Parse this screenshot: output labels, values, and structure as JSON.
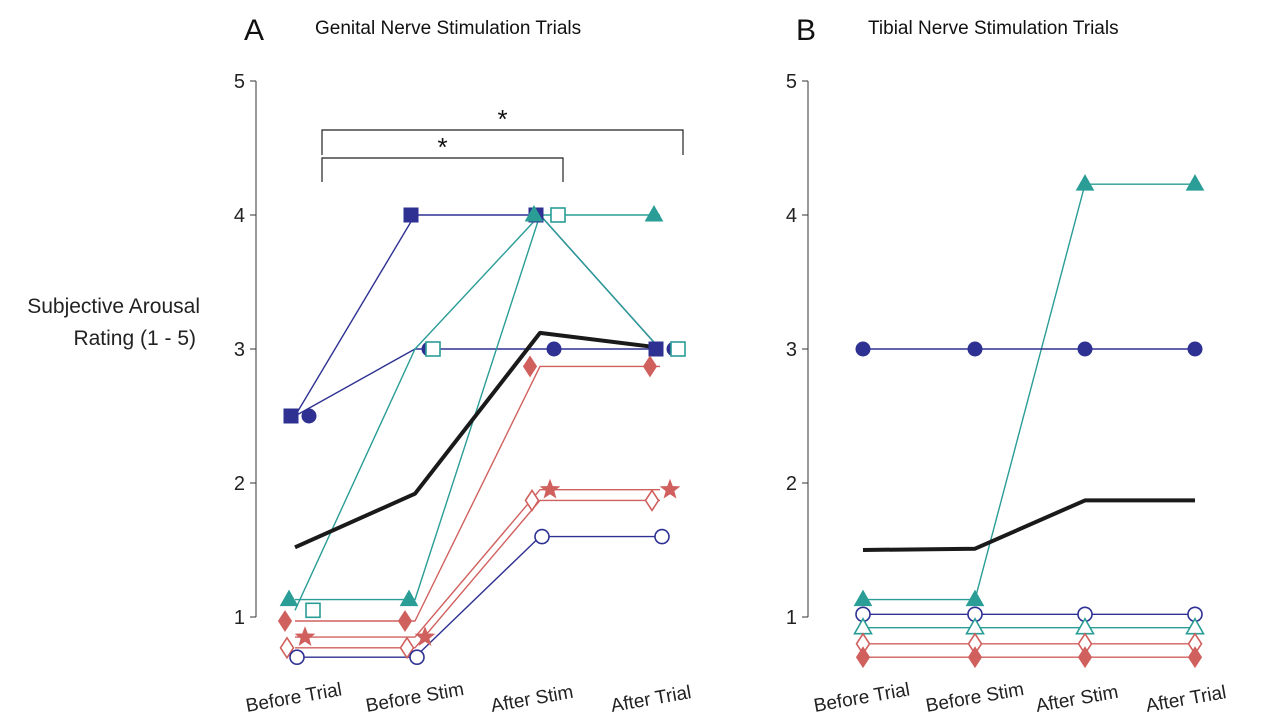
{
  "chart_data": [
    {
      "type": "line",
      "panel_letter": "A",
      "title": "Genital Nerve Stimulation Trials",
      "ylabel": [
        "Subjective Arousal",
        "Rating (1 - 5)"
      ],
      "categories": [
        "Before Trial",
        "Before Stim",
        "After Stim",
        "After Trial"
      ],
      "yticks": [
        "1",
        "2",
        "3",
        "4",
        "5"
      ],
      "ylim": [
        0.7,
        5
      ],
      "significance": [
        {
          "from": "Before Trial",
          "to": "After Stim",
          "label": "*"
        },
        {
          "from": "Before Trial",
          "to": "After Trial",
          "label": "*"
        }
      ],
      "series": [
        {
          "marker": "square-filled",
          "color": "#2e3192",
          "points": [
            [
              "Before Trial",
              2.5
            ],
            [
              "Before Stim",
              4.0
            ],
            [
              "After Stim",
              4.0
            ],
            [
              "After Trial",
              3.0
            ]
          ]
        },
        {
          "marker": "circle-filled",
          "color": "#2e3192",
          "points": [
            [
              "Before Trial",
              2.5
            ],
            [
              "Before Stim",
              3.0
            ],
            [
              "After Stim",
              3.0
            ],
            [
              "After Trial",
              3.0
            ]
          ]
        },
        {
          "marker": "triangle-filled",
          "color": "#2a9d96",
          "points": [
            [
              "Before Trial",
              1.13
            ],
            [
              "Before Stim",
              1.13
            ],
            [
              "After Stim",
              4.0
            ],
            [
              "After Trial",
              4.0
            ]
          ]
        },
        {
          "marker": "square-open",
          "color": "#2a9d96",
          "points": [
            [
              "Before Trial",
              1.05
            ],
            [
              "Before Stim",
              3.0
            ],
            [
              "After Stim",
              4.0
            ],
            [
              "After Trial",
              3.0
            ]
          ]
        },
        {
          "marker": "diamond-filled",
          "color": "#d0605e",
          "points": [
            [
              "Before Trial",
              0.97
            ],
            [
              "Before Stim",
              0.97
            ],
            [
              "After Stim",
              2.87
            ],
            [
              "After Trial",
              2.87
            ]
          ]
        },
        {
          "marker": "star-filled",
          "color": "#d0605e",
          "points": [
            [
              "Before Trial",
              0.85
            ],
            [
              "Before Stim",
              0.85
            ],
            [
              "After Stim",
              1.95
            ],
            [
              "After Trial",
              1.95
            ]
          ]
        },
        {
          "marker": "diamond-open",
          "color": "#d0605e",
          "points": [
            [
              "Before Trial",
              0.77
            ],
            [
              "Before Stim",
              0.77
            ],
            [
              "After Stim",
              1.87
            ],
            [
              "After Trial",
              1.87
            ]
          ]
        },
        {
          "marker": "circle-open",
          "color": "#2e3192",
          "points": [
            [
              "Before Trial",
              0.7
            ],
            [
              "Before Stim",
              0.7
            ],
            [
              "After Stim",
              1.6
            ],
            [
              "After Trial",
              1.6
            ]
          ]
        },
        {
          "marker": "none",
          "color": "#1a1a1a",
          "mean": true,
          "points": [
            [
              "Before Trial",
              1.52
            ],
            [
              "Before Stim",
              1.92
            ],
            [
              "After Stim",
              3.12
            ],
            [
              "After Trial",
              3.01
            ]
          ]
        }
      ]
    },
    {
      "type": "line",
      "panel_letter": "B",
      "title": "Tibial Nerve Stimulation Trials",
      "categories": [
        "Before Trial",
        "Before Stim",
        "After Stim",
        "After Trial"
      ],
      "yticks": [
        "1",
        "2",
        "3",
        "4",
        "5"
      ],
      "ylim": [
        0.7,
        5
      ],
      "series": [
        {
          "marker": "triangle-filled",
          "color": "#2a9d96",
          "points": [
            [
              "Before Trial",
              1.13
            ],
            [
              "Before Stim",
              1.13
            ],
            [
              "After Stim",
              4.23
            ],
            [
              "After Trial",
              4.23
            ]
          ]
        },
        {
          "marker": "circle-filled",
          "color": "#2e3192",
          "points": [
            [
              "Before Trial",
              3.0
            ],
            [
              "Before Stim",
              3.0
            ],
            [
              "After Stim",
              3.0
            ],
            [
              "After Trial",
              3.0
            ]
          ]
        },
        {
          "marker": "circle-open",
          "color": "#2e3192",
          "points": [
            [
              "Before Trial",
              1.02
            ],
            [
              "Before Stim",
              1.02
            ],
            [
              "After Stim",
              1.02
            ],
            [
              "After Trial",
              1.02
            ]
          ]
        },
        {
          "marker": "triangle-open",
          "color": "#2a9d96",
          "points": [
            [
              "Before Trial",
              0.92
            ],
            [
              "Before Stim",
              0.92
            ],
            [
              "After Stim",
              0.92
            ],
            [
              "After Trial",
              0.92
            ]
          ]
        },
        {
          "marker": "diamond-open",
          "color": "#d0605e",
          "points": [
            [
              "Before Trial",
              0.8
            ],
            [
              "Before Stim",
              0.8
            ],
            [
              "After Stim",
              0.8
            ],
            [
              "After Trial",
              0.8
            ]
          ]
        },
        {
          "marker": "diamond-filled",
          "color": "#d0605e",
          "points": [
            [
              "Before Trial",
              0.7
            ],
            [
              "Before Stim",
              0.7
            ],
            [
              "After Stim",
              0.7
            ],
            [
              "After Trial",
              0.7
            ]
          ]
        },
        {
          "marker": "none",
          "color": "#1a1a1a",
          "mean": true,
          "points": [
            [
              "Before Trial",
              1.5
            ],
            [
              "Before Stim",
              1.51
            ],
            [
              "After Stim",
              1.87
            ],
            [
              "After Trial",
              1.87
            ]
          ]
        }
      ]
    }
  ]
}
